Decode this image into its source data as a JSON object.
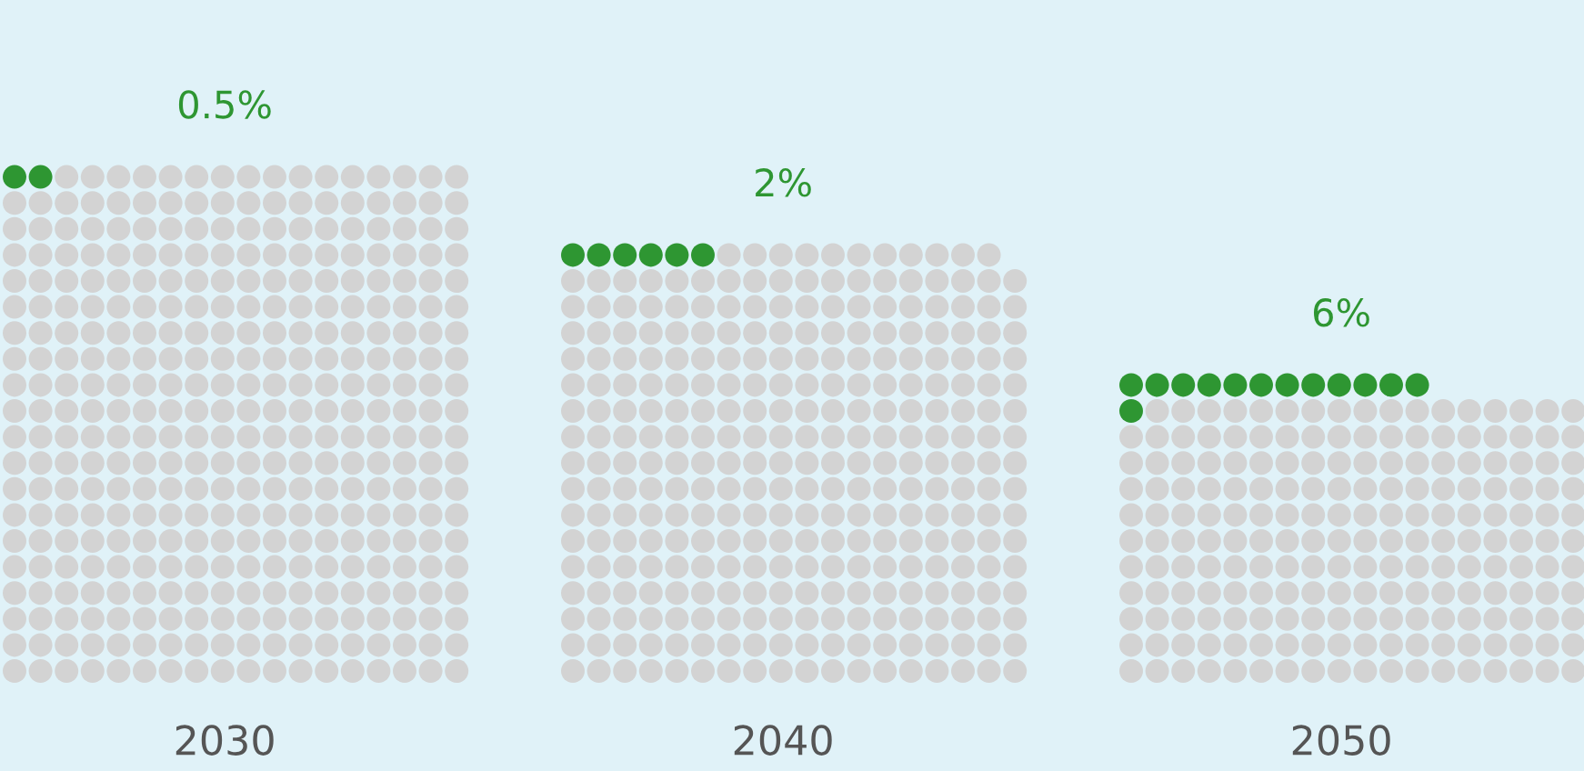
{
  "chart_data": {
    "type": "other",
    "categories": [
      "2030",
      "2040",
      "2050"
    ],
    "values": [
      0.5,
      2,
      6
    ],
    "value_labels": [
      "0.5%",
      "2%",
      "6%"
    ],
    "colors": [
      "#2e9632",
      "#2e9632",
      "#2e9632"
    ]
  }
}
